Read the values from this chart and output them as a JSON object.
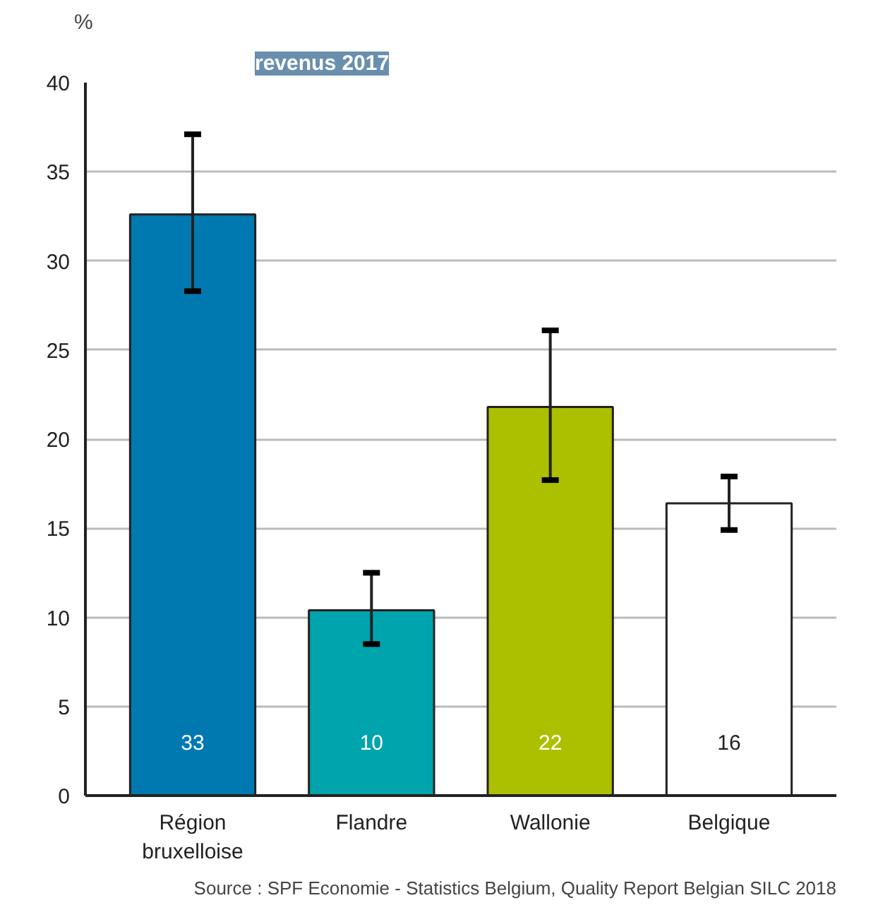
{
  "chart_data": {
    "type": "bar",
    "title": "revenus 2017",
    "ylabel": "%",
    "categories": [
      "Région bruxelloise",
      "Flandre",
      "Wallonie",
      "Belgique"
    ],
    "values": [
      32.6,
      10.4,
      21.8,
      16.4
    ],
    "colors": [
      "#0079b0",
      "#00a4ad",
      "#acc000",
      "#ffffff"
    ],
    "value_labels": [
      "33",
      "10",
      "22",
      "16"
    ],
    "errors": [
      [
        28.3,
        37.1
      ],
      [
        8.5,
        12.5
      ],
      [
        17.7,
        26.1
      ],
      [
        14.9,
        17.9
      ]
    ],
    "ylim": [
      0,
      40
    ],
    "yticks": [
      0,
      5,
      10,
      15,
      20,
      25,
      30,
      35,
      40
    ],
    "grid": "y",
    "annotations": [
      "Source : SPF Economie - Statistics Belgium, Quality Report Belgian SILC 2018"
    ]
  }
}
